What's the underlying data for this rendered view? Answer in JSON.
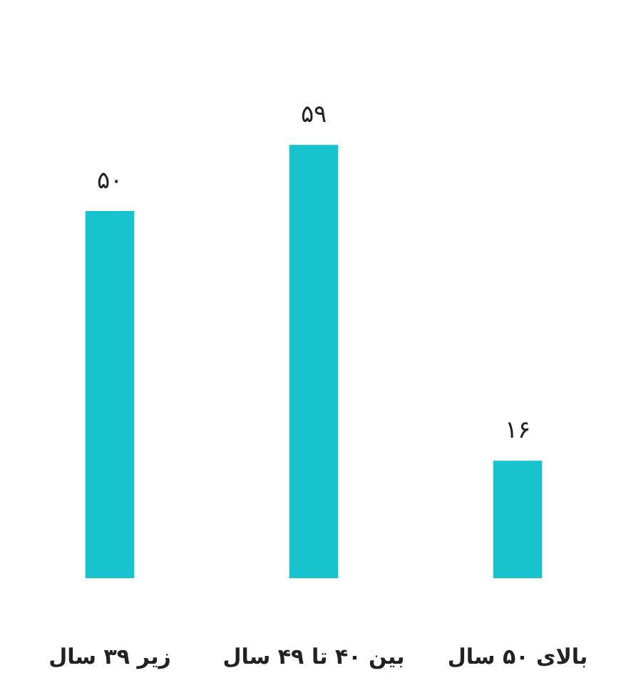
{
  "chart_data": {
    "type": "bar",
    "categories": [
      "زیر ۳۹ سال",
      "بین ۴۰ تا ۴۹ سال",
      "بالای ۵۰ سال"
    ],
    "values": [
      50,
      59,
      16
    ],
    "color": "#17c3cc",
    "value_labels": [
      "۵۰",
      "۵۹",
      "۱۶"
    ]
  }
}
